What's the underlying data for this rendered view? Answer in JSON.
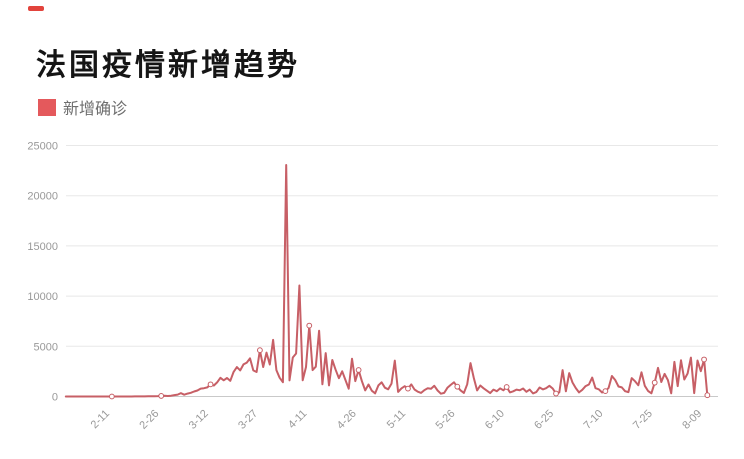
{
  "decor": {
    "dash_color": "#e2433c"
  },
  "header": {
    "title": "法国疫情新增趋势"
  },
  "legend": {
    "label": "新增确诊",
    "swatch_color": "#e4595c"
  },
  "chart_data": {
    "type": "line",
    "title": "法国疫情新增趋势",
    "series_name": "新增确诊",
    "line_color": "#c75f66",
    "axis_label_color": "#999999",
    "grid_color": "#e8e8e8",
    "axis_line_color": "#c9c9c9",
    "ylim": [
      0,
      25000
    ],
    "grid": "horizontal-only",
    "legend_position": "top-left",
    "y_ticks": [
      0,
      5000,
      10000,
      15000,
      20000,
      25000
    ],
    "x_ticks": [
      {
        "label": "2-11",
        "index": 11
      },
      {
        "label": "2-26",
        "index": 26
      },
      {
        "label": "3-12",
        "index": 41
      },
      {
        "label": "3-27",
        "index": 56
      },
      {
        "label": "4-11",
        "index": 71
      },
      {
        "label": "4-26",
        "index": 86
      },
      {
        "label": "5-11",
        "index": 101
      },
      {
        "label": "5-26",
        "index": 116
      },
      {
        "label": "6-10",
        "index": 131
      },
      {
        "label": "6-25",
        "index": 146
      },
      {
        "label": "7-10",
        "index": 161
      },
      {
        "label": "7-25",
        "index": 176
      },
      {
        "label": "8-09",
        "index": 191
      }
    ],
    "x_unit": "day",
    "values": [
      2,
      0,
      0,
      3,
      0,
      2,
      0,
      4,
      0,
      2,
      3,
      1,
      0,
      2,
      1,
      0,
      3,
      0,
      2,
      1,
      4,
      6,
      5,
      8,
      12,
      18,
      25,
      34,
      43,
      57,
      73,
      48,
      81,
      138,
      190,
      336,
      177,
      286,
      372,
      497,
      595,
      785,
      829,
      911,
      1210,
      1097,
      1404,
      1861,
      1617,
      1847,
      1559,
      2448,
      2929,
      2600,
      3200,
      3376,
      3809,
      2599,
      2444,
      4611,
      2937,
      4376,
      3185,
      5633,
      2633,
      1873,
      1426,
      23060,
      1607,
      3881,
      4286,
      11059,
      1613,
      2937,
      7061,
      2633,
      2972,
      6555,
      1219,
      4327,
      1101,
      3634,
      2667,
      1827,
      2512,
      1653,
      773,
      3764,
      1537,
      2638,
      1520,
      604,
      1200,
      579,
      306,
      1104,
      1419,
      872,
      718,
      1288,
      3579,
      456,
      802,
      1023,
      786,
      1204,
      693,
      483,
      358,
      641,
      812,
      767,
      1062,
      594,
      276,
      358,
      867,
      1153,
      1412,
      978,
      611,
      358,
      1211,
      3325,
      1838,
      611,
      1097,
      815,
      579,
      343,
      692,
      526,
      811,
      617,
      946,
      407,
      514,
      684,
      613,
      792,
      467,
      689,
      310,
      434,
      893,
      712,
      827,
      1062,
      798,
      293,
      406,
      2628,
      517,
      2330,
      1392,
      836,
      407,
      663,
      1039,
      1195,
      1885,
      827,
      715,
      396,
      536,
      858,
      2045,
      1640,
      998,
      905,
      524,
      436,
      1830,
      1519,
      1130,
      2408,
      1062,
      548,
      320,
      1377,
      2846,
      1444,
      2250,
      1630,
      319,
      3446,
      1039,
      3602,
      1695,
      2288,
      3876,
      337,
      3585,
      2524,
      3688,
      130
    ]
  }
}
